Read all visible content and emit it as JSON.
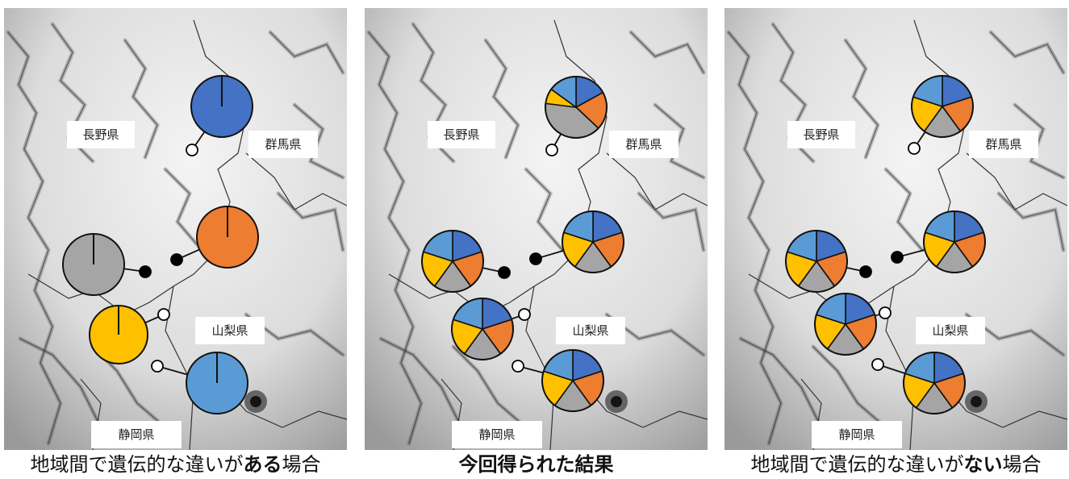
{
  "colors": {
    "dark_blue": "#4472c4",
    "light_blue": "#5b9bd5",
    "orange": "#ed7d31",
    "gray": "#a5a5a5",
    "yellow": "#ffc000",
    "outline": "#111111"
  },
  "icons": {
    "open_site": "white-circle-marker",
    "closed_site": "black-circle-marker"
  },
  "panels": [
    {
      "id": "left",
      "labels": [
        "長野県",
        "群馬県",
        "山梨県",
        "静岡県"
      ],
      "caption_pre": "地域間で遺伝的な違いが",
      "caption_emph": "ある",
      "caption_post": "場合",
      "pies": [
        {
          "site": "north",
          "marker": "white",
          "fractions": {
            "dark_blue": 1
          }
        },
        {
          "site": "center-east",
          "marker": "black",
          "fractions": {
            "orange": 1
          }
        },
        {
          "site": "center-west",
          "marker": "black",
          "fractions": {
            "gray": 1
          }
        },
        {
          "site": "south-west",
          "marker": "white",
          "fractions": {
            "yellow": 1
          }
        },
        {
          "site": "south",
          "marker": "white",
          "fractions": {
            "light_blue": 1
          }
        }
      ]
    },
    {
      "id": "middle",
      "labels": [
        "長野県",
        "群馬県",
        "山梨県",
        "静岡県"
      ],
      "caption": "今回得られた結果",
      "pies": [
        {
          "site": "north",
          "marker": "white",
          "fractions": {
            "dark_blue": 0.17,
            "orange": 0.2,
            "gray": 0.4,
            "yellow": 0.08,
            "light_blue": 0.15
          }
        },
        {
          "site": "center-east",
          "marker": "black",
          "fractions": {
            "dark_blue": 0.2,
            "orange": 0.2,
            "gray": 0.2,
            "yellow": 0.2,
            "light_blue": 0.2
          }
        },
        {
          "site": "center-west",
          "marker": "black",
          "fractions": {
            "dark_blue": 0.2,
            "orange": 0.2,
            "gray": 0.2,
            "yellow": 0.2,
            "light_blue": 0.2
          }
        },
        {
          "site": "south-west",
          "marker": "white",
          "fractions": {
            "dark_blue": 0.2,
            "orange": 0.2,
            "gray": 0.2,
            "yellow": 0.2,
            "light_blue": 0.2
          }
        },
        {
          "site": "south",
          "marker": "white",
          "fractions": {
            "dark_blue": 0.2,
            "orange": 0.2,
            "gray": 0.2,
            "yellow": 0.2,
            "light_blue": 0.2
          }
        }
      ]
    },
    {
      "id": "right",
      "labels": [
        "長野県",
        "群馬県",
        "山梨県",
        "静岡県"
      ],
      "caption_pre": "地域間で遺伝的な違いが",
      "caption_emph": "ない",
      "caption_post": "場合",
      "pies": [
        {
          "site": "north",
          "marker": "white",
          "fractions": {
            "dark_blue": 0.2,
            "orange": 0.2,
            "gray": 0.2,
            "yellow": 0.2,
            "light_blue": 0.2
          }
        },
        {
          "site": "center-east",
          "marker": "black",
          "fractions": {
            "dark_blue": 0.2,
            "orange": 0.2,
            "gray": 0.2,
            "yellow": 0.2,
            "light_blue": 0.2
          }
        },
        {
          "site": "center-west",
          "marker": "black",
          "fractions": {
            "dark_blue": 0.2,
            "orange": 0.2,
            "gray": 0.2,
            "yellow": 0.2,
            "light_blue": 0.2
          }
        },
        {
          "site": "south-west",
          "marker": "white",
          "fractions": {
            "dark_blue": 0.2,
            "orange": 0.2,
            "gray": 0.2,
            "yellow": 0.2,
            "light_blue": 0.2
          }
        },
        {
          "site": "south",
          "marker": "white",
          "fractions": {
            "dark_blue": 0.2,
            "orange": 0.2,
            "gray": 0.2,
            "yellow": 0.2,
            "light_blue": 0.2
          }
        }
      ]
    }
  ]
}
